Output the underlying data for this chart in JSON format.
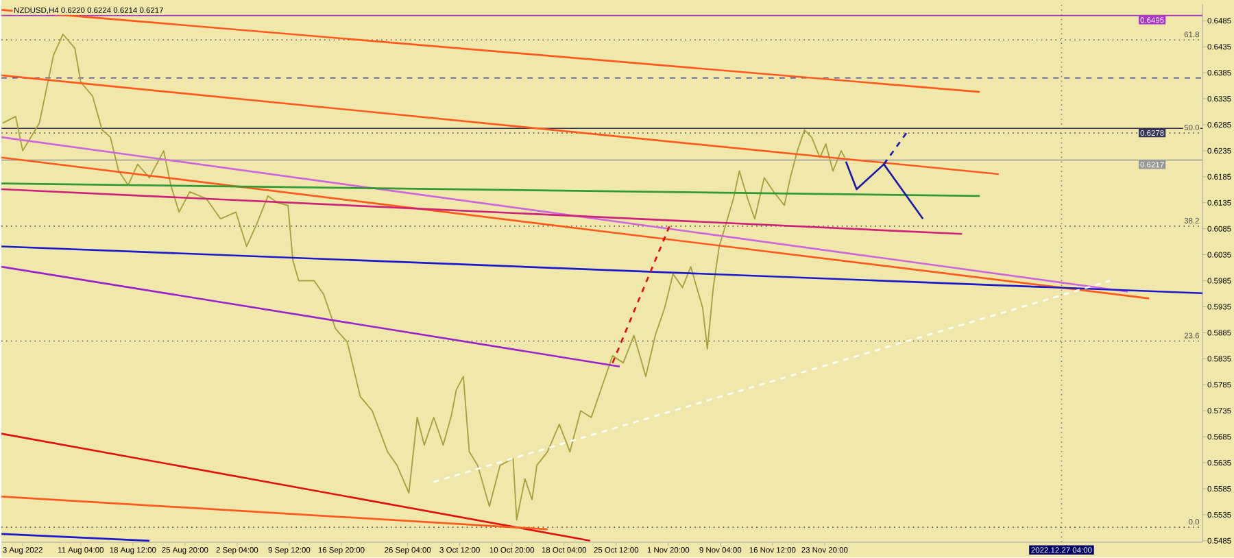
{
  "chart_data": {
    "type": "line",
    "title": "NZDUSD,H4  0.6220 0.6224 0.6214 0.6217",
    "xlim": [
      "2022-07-31T00:00",
      "2023-01-16T00:00"
    ],
    "ylim": [
      0.5482,
      0.6517
    ],
    "xticks": [
      {
        "value": "2022-08-03T00:00",
        "label": "3 Aug 2022"
      },
      {
        "value": "2022-08-11T04:00",
        "label": "11 Aug 04:00"
      },
      {
        "value": "2022-08-18T12:00",
        "label": "18 Aug 12:00"
      },
      {
        "value": "2022-08-25T20:00",
        "label": "25 Aug 20:00"
      },
      {
        "value": "2022-09-02T04:00",
        "label": "2 Sep 04:00"
      },
      {
        "value": "2022-09-09T12:00",
        "label": "9 Sep 12:00"
      },
      {
        "value": "2022-09-16T20:00",
        "label": "16 Sep 20:00"
      },
      {
        "value": "2022-09-26T04:00",
        "label": "26 Sep 04:00"
      },
      {
        "value": "2022-10-03T12:00",
        "label": "3 Oct 12:00"
      },
      {
        "value": "2022-10-10T20:00",
        "label": "10 Oct 20:00"
      },
      {
        "value": "2022-10-18T04:00",
        "label": "18 Oct 04:00"
      },
      {
        "value": "2022-10-25T12:00",
        "label": "25 Oct 12:00"
      },
      {
        "value": "2022-11-01T20:00",
        "label": "1 Nov 20:00"
      },
      {
        "value": "2022-11-09T04:00",
        "label": "9 Nov 04:00"
      },
      {
        "value": "2022-11-16T12:00",
        "label": "16 Nov 12:00"
      },
      {
        "value": "2022-11-23T20:00",
        "label": "23 Nov 20:00"
      }
    ],
    "yticks": [
      0.5485,
      0.5535,
      0.5585,
      0.5635,
      0.5685,
      0.5735,
      0.5785,
      0.5835,
      0.5885,
      0.5935,
      0.5985,
      0.6035,
      0.6085,
      0.6135,
      0.6185,
      0.6235,
      0.6285,
      0.6335,
      0.6385,
      0.6435,
      0.6485
    ],
    "grid": false,
    "line_style": "solid",
    "marker": "none",
    "series": [
      {
        "color": "#a8a040",
        "x": [
          "2022-07-31T04:00",
          "2022-08-02T00:00",
          "2022-08-03T00:00",
          "2022-08-05T08:00",
          "2022-08-07T08:00",
          "2022-08-08T16:00",
          "2022-08-10T08:00",
          "2022-08-11T04:00",
          "2022-08-12T20:00",
          "2022-08-14T04:00",
          "2022-08-15T08:00",
          "2022-08-16T12:00",
          "2022-08-17T20:00",
          "2022-08-19T04:00",
          "2022-08-20T20:00",
          "2022-08-22T20:00",
          "2022-08-23T20:00",
          "2022-08-25T00:00",
          "2022-08-26T12:00",
          "2022-08-28T20:00",
          "2022-08-30T20:00",
          "2022-09-02T00:00",
          "2022-09-03T12:00",
          "2022-09-04T20:00",
          "2022-09-06T12:00",
          "2022-09-07T20:00",
          "2022-09-09T08:00",
          "2022-09-10T00:00",
          "2022-09-10T20:00",
          "2022-09-13T00:00",
          "2022-09-14T08:00",
          "2022-09-16T00:00",
          "2022-09-17T16:00",
          "2022-09-19T12:00",
          "2022-09-21T04:00",
          "2022-09-23T08:00",
          "2022-09-24T16:00",
          "2022-09-26T08:00",
          "2022-09-27T12:00",
          "2022-09-28T12:00",
          "2022-09-29T20:00",
          "2022-10-01T04:00",
          "2022-10-02T08:00",
          "2022-10-03T00:00",
          "2022-10-04T00:00",
          "2022-10-04T20:00",
          "2022-10-06T00:00",
          "2022-10-07T16:00",
          "2022-10-09T04:00",
          "2022-10-11T00:00",
          "2022-10-11T12:00",
          "2022-10-12T16:00",
          "2022-10-13T16:00",
          "2022-10-14T08:00",
          "2022-10-15T20:00",
          "2022-10-17T12:00",
          "2022-10-19T00:00",
          "2022-10-20T12:00",
          "2022-10-22T00:00",
          "2022-10-23T16:00",
          "2022-10-25T00:00",
          "2022-10-26T12:00",
          "2022-10-28T00:00",
          "2022-10-29T16:00",
          "2022-10-31T00:00",
          "2022-11-01T08:00",
          "2022-11-02T12:00",
          "2022-11-03T20:00",
          "2022-11-05T00:00",
          "2022-11-06T16:00",
          "2022-11-07T08:00",
          "2022-11-08T04:00",
          "2022-11-09T00:00",
          "2022-11-10T04:00",
          "2022-11-11T00:00",
          "2022-11-11T20:00",
          "2022-11-13T00:00",
          "2022-11-14T00:00",
          "2022-11-15T08:00",
          "2022-11-16T16:00",
          "2022-11-18T04:00",
          "2022-11-19T00:00",
          "2022-11-20T00:00",
          "2022-11-21T00:00",
          "2022-11-22T00:00",
          "2022-11-23T04:00",
          "2022-11-24T00:00",
          "2022-11-25T00:00",
          "2022-11-26T04:00",
          "2022-11-26T16:00"
        ],
        "values": [
          0.6288,
          0.6301,
          0.6235,
          0.6288,
          0.6419,
          0.6459,
          0.6432,
          0.6367,
          0.634,
          0.6275,
          0.6261,
          0.6196,
          0.6169,
          0.6209,
          0.6183,
          0.6235,
          0.6169,
          0.6117,
          0.6156,
          0.6143,
          0.6104,
          0.6117,
          0.6051,
          0.6091,
          0.6148,
          0.6135,
          0.613,
          0.6025,
          0.5985,
          0.5985,
          0.5959,
          0.5893,
          0.5867,
          0.5762,
          0.5735,
          0.5656,
          0.563,
          0.5577,
          0.5722,
          0.5669,
          0.5722,
          0.5669,
          0.5727,
          0.5775,
          0.5801,
          0.5656,
          0.563,
          0.5551,
          0.563,
          0.5643,
          0.5525,
          0.5604,
          0.5564,
          0.563,
          0.5656,
          0.5709,
          0.5656,
          0.5735,
          0.5722,
          0.5788,
          0.5841,
          0.5827,
          0.588,
          0.5801,
          0.588,
          0.5933,
          0.5998,
          0.5972,
          0.6012,
          0.5933,
          0.5854,
          0.5972,
          0.6051,
          0.6104,
          0.6143,
          0.6196,
          0.6143,
          0.6104,
          0.6183,
          0.6156,
          0.613,
          0.6183,
          0.6235,
          0.6275,
          0.6261,
          0.6222,
          0.6248,
          0.6196,
          0.6235,
          0.6222
        ]
      },
      {
        "color": "#ff5a1e",
        "x": [
          "2022-07-31T00:00",
          "2022-12-15T16:00"
        ],
        "values": [
          0.6506,
          0.6348
        ]
      },
      {
        "color": "#ff5a1e",
        "x": [
          "2022-07-31T00:00",
          "2022-12-18T08:00"
        ],
        "values": [
          0.638,
          0.619
        ]
      },
      {
        "color": "#cc66dd",
        "x": [
          "2022-07-31T00:00",
          "2023-01-05T12:00"
        ],
        "values": [
          0.6261,
          0.5964
        ]
      },
      {
        "color": "#ff5a1e",
        "x": [
          "2022-07-31T00:00",
          "2023-01-08T12:00"
        ],
        "values": [
          0.6222,
          0.5951
        ]
      },
      {
        "color": "#339933",
        "x": [
          "2022-07-31T00:00",
          "2022-12-15T16:00"
        ],
        "values": [
          0.6172,
          0.6148
        ]
      },
      {
        "color": "#cc2277",
        "x": [
          "2022-07-31T00:00",
          "2022-12-13T04:00"
        ],
        "values": [
          0.6161,
          0.6075
        ]
      },
      {
        "color": "#1a1acc",
        "x": [
          "2022-07-31T00:00",
          "2023-01-16T00:00"
        ],
        "values": [
          0.6051,
          0.5961
        ]
      },
      {
        "color": "#9922cc",
        "x": [
          "2022-07-31T00:00",
          "2022-10-26T00:00"
        ],
        "values": [
          0.6012,
          0.582
        ]
      },
      {
        "color": "#e01010",
        "x": [
          "2022-07-31T00:00",
          "2022-10-21T20:00"
        ],
        "values": [
          0.5691,
          0.5485
        ]
      },
      {
        "color": "#ff5a1e",
        "x": [
          "2022-07-31T00:00",
          "2022-10-15T20:00"
        ],
        "values": [
          0.557,
          0.5507
        ]
      },
      {
        "color": "#1a1acc",
        "x": [
          "2022-07-31T00:00",
          "2022-08-20T20:00"
        ],
        "values": [
          0.5498,
          0.5485
        ]
      },
      {
        "color": "#1a1aaa",
        "x": [
          "2022-11-26T20:00",
          "2022-11-28T08:00",
          "2022-12-02T04:00",
          "2022-12-07T16:00"
        ],
        "values": [
          0.6214,
          0.6161,
          0.6209,
          0.6104
        ]
      },
      {
        "color": "#1a1aaa",
        "line_style": "dashed",
        "x": [
          "2022-12-02T04:00",
          "2022-12-05T08:00"
        ],
        "values": [
          0.6209,
          0.6269
        ]
      },
      {
        "color": "#e01010",
        "line_style": "dashed",
        "x": [
          "2022-10-25T00:00",
          "2022-11-02T00:00"
        ],
        "values": [
          0.5827,
          0.609
        ]
      },
      {
        "color": "#ffffff",
        "line_style": "dashed",
        "x": [
          "2022-09-29T20:00",
          "2023-01-03T00:00"
        ],
        "values": [
          0.5598,
          0.5985
        ]
      }
    ],
    "annotations": [
      {
        "text": "61.8",
        "x": "2023-01-16T00:00",
        "y": 0.6448
      },
      {
        "text": "50.0",
        "x": "2023-01-16T00:00",
        "y": 0.6269
      },
      {
        "text": "38.2",
        "x": "2023-01-16T00:00",
        "y": 0.609
      },
      {
        "text": "23.6",
        "x": "2023-01-16T00:00",
        "y": 0.5869
      },
      {
        "text": "0.0",
        "x": "2023-01-16T00:00",
        "y": 0.5511
      }
    ],
    "ref_lines": [
      {
        "axis": "y",
        "value": 0.6495,
        "label": "0.6495",
        "color": "#aa33cc",
        "line_style": "solid"
      },
      {
        "axis": "y",
        "value": 0.6448,
        "color": "#555555",
        "line_style": "dotted"
      },
      {
        "axis": "y",
        "value": 0.6375,
        "color": "#4444aa",
        "line_style": "dashed"
      },
      {
        "axis": "y",
        "value": 0.6278,
        "label": "0.6278",
        "color": "#333355",
        "line_style": "solid"
      },
      {
        "axis": "y",
        "value": 0.6269,
        "color": "#555555",
        "line_style": "dotted"
      },
      {
        "axis": "y",
        "value": 0.6217,
        "label": "0.6217",
        "color": "#999999",
        "line_style": "solid"
      },
      {
        "axis": "y",
        "value": 0.609,
        "color": "#555555",
        "line_style": "dotted"
      },
      {
        "axis": "y",
        "value": 0.5869,
        "color": "#555555",
        "line_style": "dotted"
      },
      {
        "axis": "y",
        "value": 0.5511,
        "color": "#555555",
        "line_style": "dotted"
      },
      {
        "axis": "x",
        "value": "2022-12-27T04:00",
        "label": "2022.12.27 04:00",
        "color": "#777777",
        "line_style": "dotted"
      }
    ]
  }
}
